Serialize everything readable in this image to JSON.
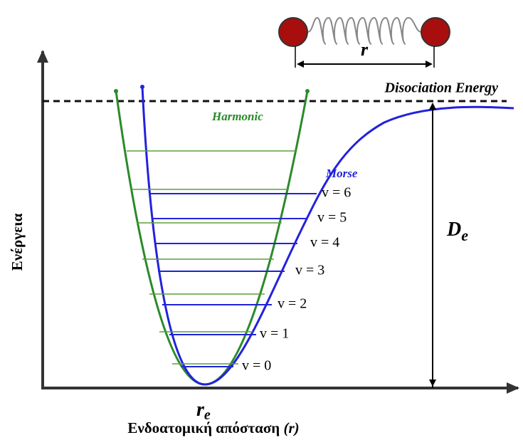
{
  "y_axis_label": "Ενέργεια",
  "x_axis_label": {
    "text": "Ενδοατομική απόσταση",
    "symbol": "(r)"
  },
  "equilibrium": {
    "symbol": "r",
    "subscript": "e"
  },
  "bond_length_label": "r",
  "dissociation_label": "Disociation Energy",
  "harmonic_label": "Harmonic",
  "morse_label": "Morse",
  "well_depth": {
    "symbol": "D",
    "subscript": "e"
  },
  "levels": [
    "v = 0",
    "v = 1",
    "v = 2",
    "v = 3",
    "v = 4",
    "v = 5",
    "v = 6"
  ]
}
